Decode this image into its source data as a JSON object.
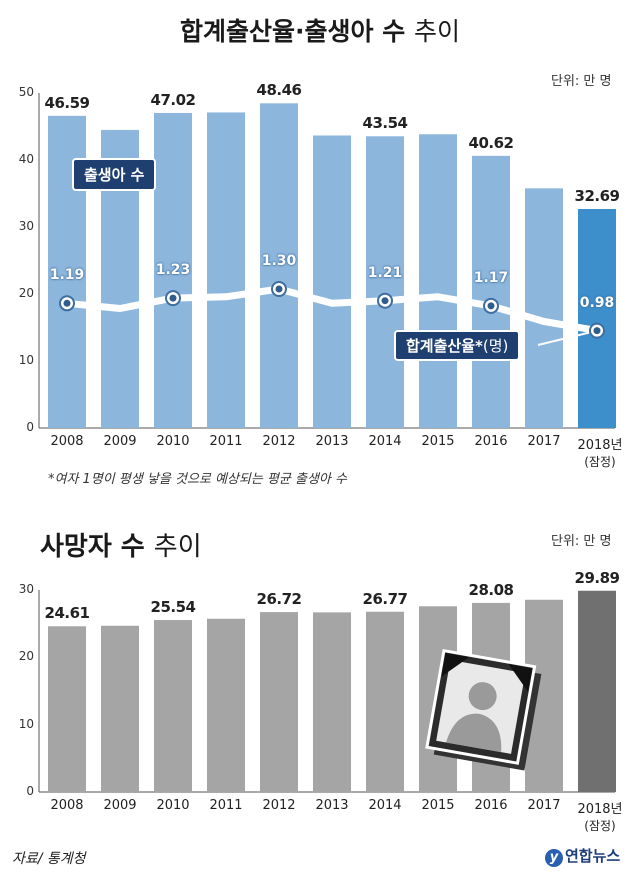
{
  "titles": {
    "top_main": "합계출산율·출생아 수",
    "top_light": "추이",
    "bottom_main": "사망자 수",
    "bottom_light": "추이"
  },
  "units": {
    "top": "단위: 만 명",
    "bottom": "단위: 만 명"
  },
  "badges": {
    "births": "출생아 수",
    "rate_main": "합계출산율*",
    "rate_unit": "(명)"
  },
  "footnote": "*여자 1명이 평생 낳을 것으로 예상되는 평균 출생아 수",
  "source": "자료/ 통계청",
  "logo": {
    "mark": "y",
    "text": "연합뉴스"
  },
  "colors": {
    "birth_bar": "#8db6dc",
    "birth_bar_last": "#3d8fcb",
    "death_bar": "#a5a5a5",
    "death_bar_last": "#707070",
    "accent": "#1e3f6f"
  },
  "x_labels": [
    "2008",
    "2009",
    "2010",
    "2011",
    "2012",
    "2013",
    "2014",
    "2015",
    "2016",
    "2017",
    "2018년"
  ],
  "x_last_sub": "(잠정)",
  "chart_data": [
    {
      "type": "bar",
      "name": "births",
      "categories": [
        "2008",
        "2009",
        "2010",
        "2011",
        "2012",
        "2013",
        "2014",
        "2015",
        "2016",
        "2017",
        "2018"
      ],
      "values": [
        46.59,
        44.49,
        47.02,
        47.1,
        48.46,
        43.66,
        43.54,
        43.84,
        40.62,
        35.77,
        32.69
      ],
      "data_labels": [
        "46.59",
        "",
        "47.02",
        "",
        "48.46",
        "",
        "43.54",
        "",
        "40.62",
        "",
        "32.69"
      ],
      "ylim": [
        0,
        50
      ],
      "yticks": [
        0,
        10,
        20,
        30,
        40,
        50
      ],
      "ytick_labels": [
        "0",
        "10",
        "20",
        "30",
        "40",
        "50"
      ],
      "unit": "단위: 만 명"
    },
    {
      "type": "line",
      "name": "total_fertility_rate",
      "categories": [
        "2008",
        "2009",
        "2010",
        "2011",
        "2012",
        "2013",
        "2014",
        "2015",
        "2016",
        "2017",
        "2018"
      ],
      "values": [
        1.19,
        1.15,
        1.23,
        1.24,
        1.3,
        1.19,
        1.21,
        1.24,
        1.17,
        1.05,
        0.98
      ],
      "data_labels": [
        "1.19",
        "",
        "1.23",
        "",
        "1.30",
        "",
        "1.21",
        "",
        "1.17",
        "",
        "0.98"
      ],
      "markers_at": [
        0,
        2,
        4,
        6,
        8,
        10
      ],
      "note": "plotted on the same vertical area as births, no separate axis shown"
    },
    {
      "type": "bar",
      "name": "deaths",
      "categories": [
        "2008",
        "2009",
        "2010",
        "2011",
        "2012",
        "2013",
        "2014",
        "2015",
        "2016",
        "2017",
        "2018"
      ],
      "values": [
        24.61,
        24.69,
        25.54,
        25.73,
        26.72,
        26.68,
        26.77,
        27.58,
        28.08,
        28.55,
        29.89
      ],
      "data_labels": [
        "24.61",
        "",
        "25.54",
        "",
        "26.72",
        "",
        "26.77",
        "",
        "28.08",
        "",
        "29.89"
      ],
      "ylim": [
        0,
        30
      ],
      "yticks": [
        0,
        10,
        20,
        30
      ],
      "ytick_labels": [
        "0",
        "10",
        "20",
        "30"
      ],
      "unit": "단위: 만 명"
    }
  ]
}
